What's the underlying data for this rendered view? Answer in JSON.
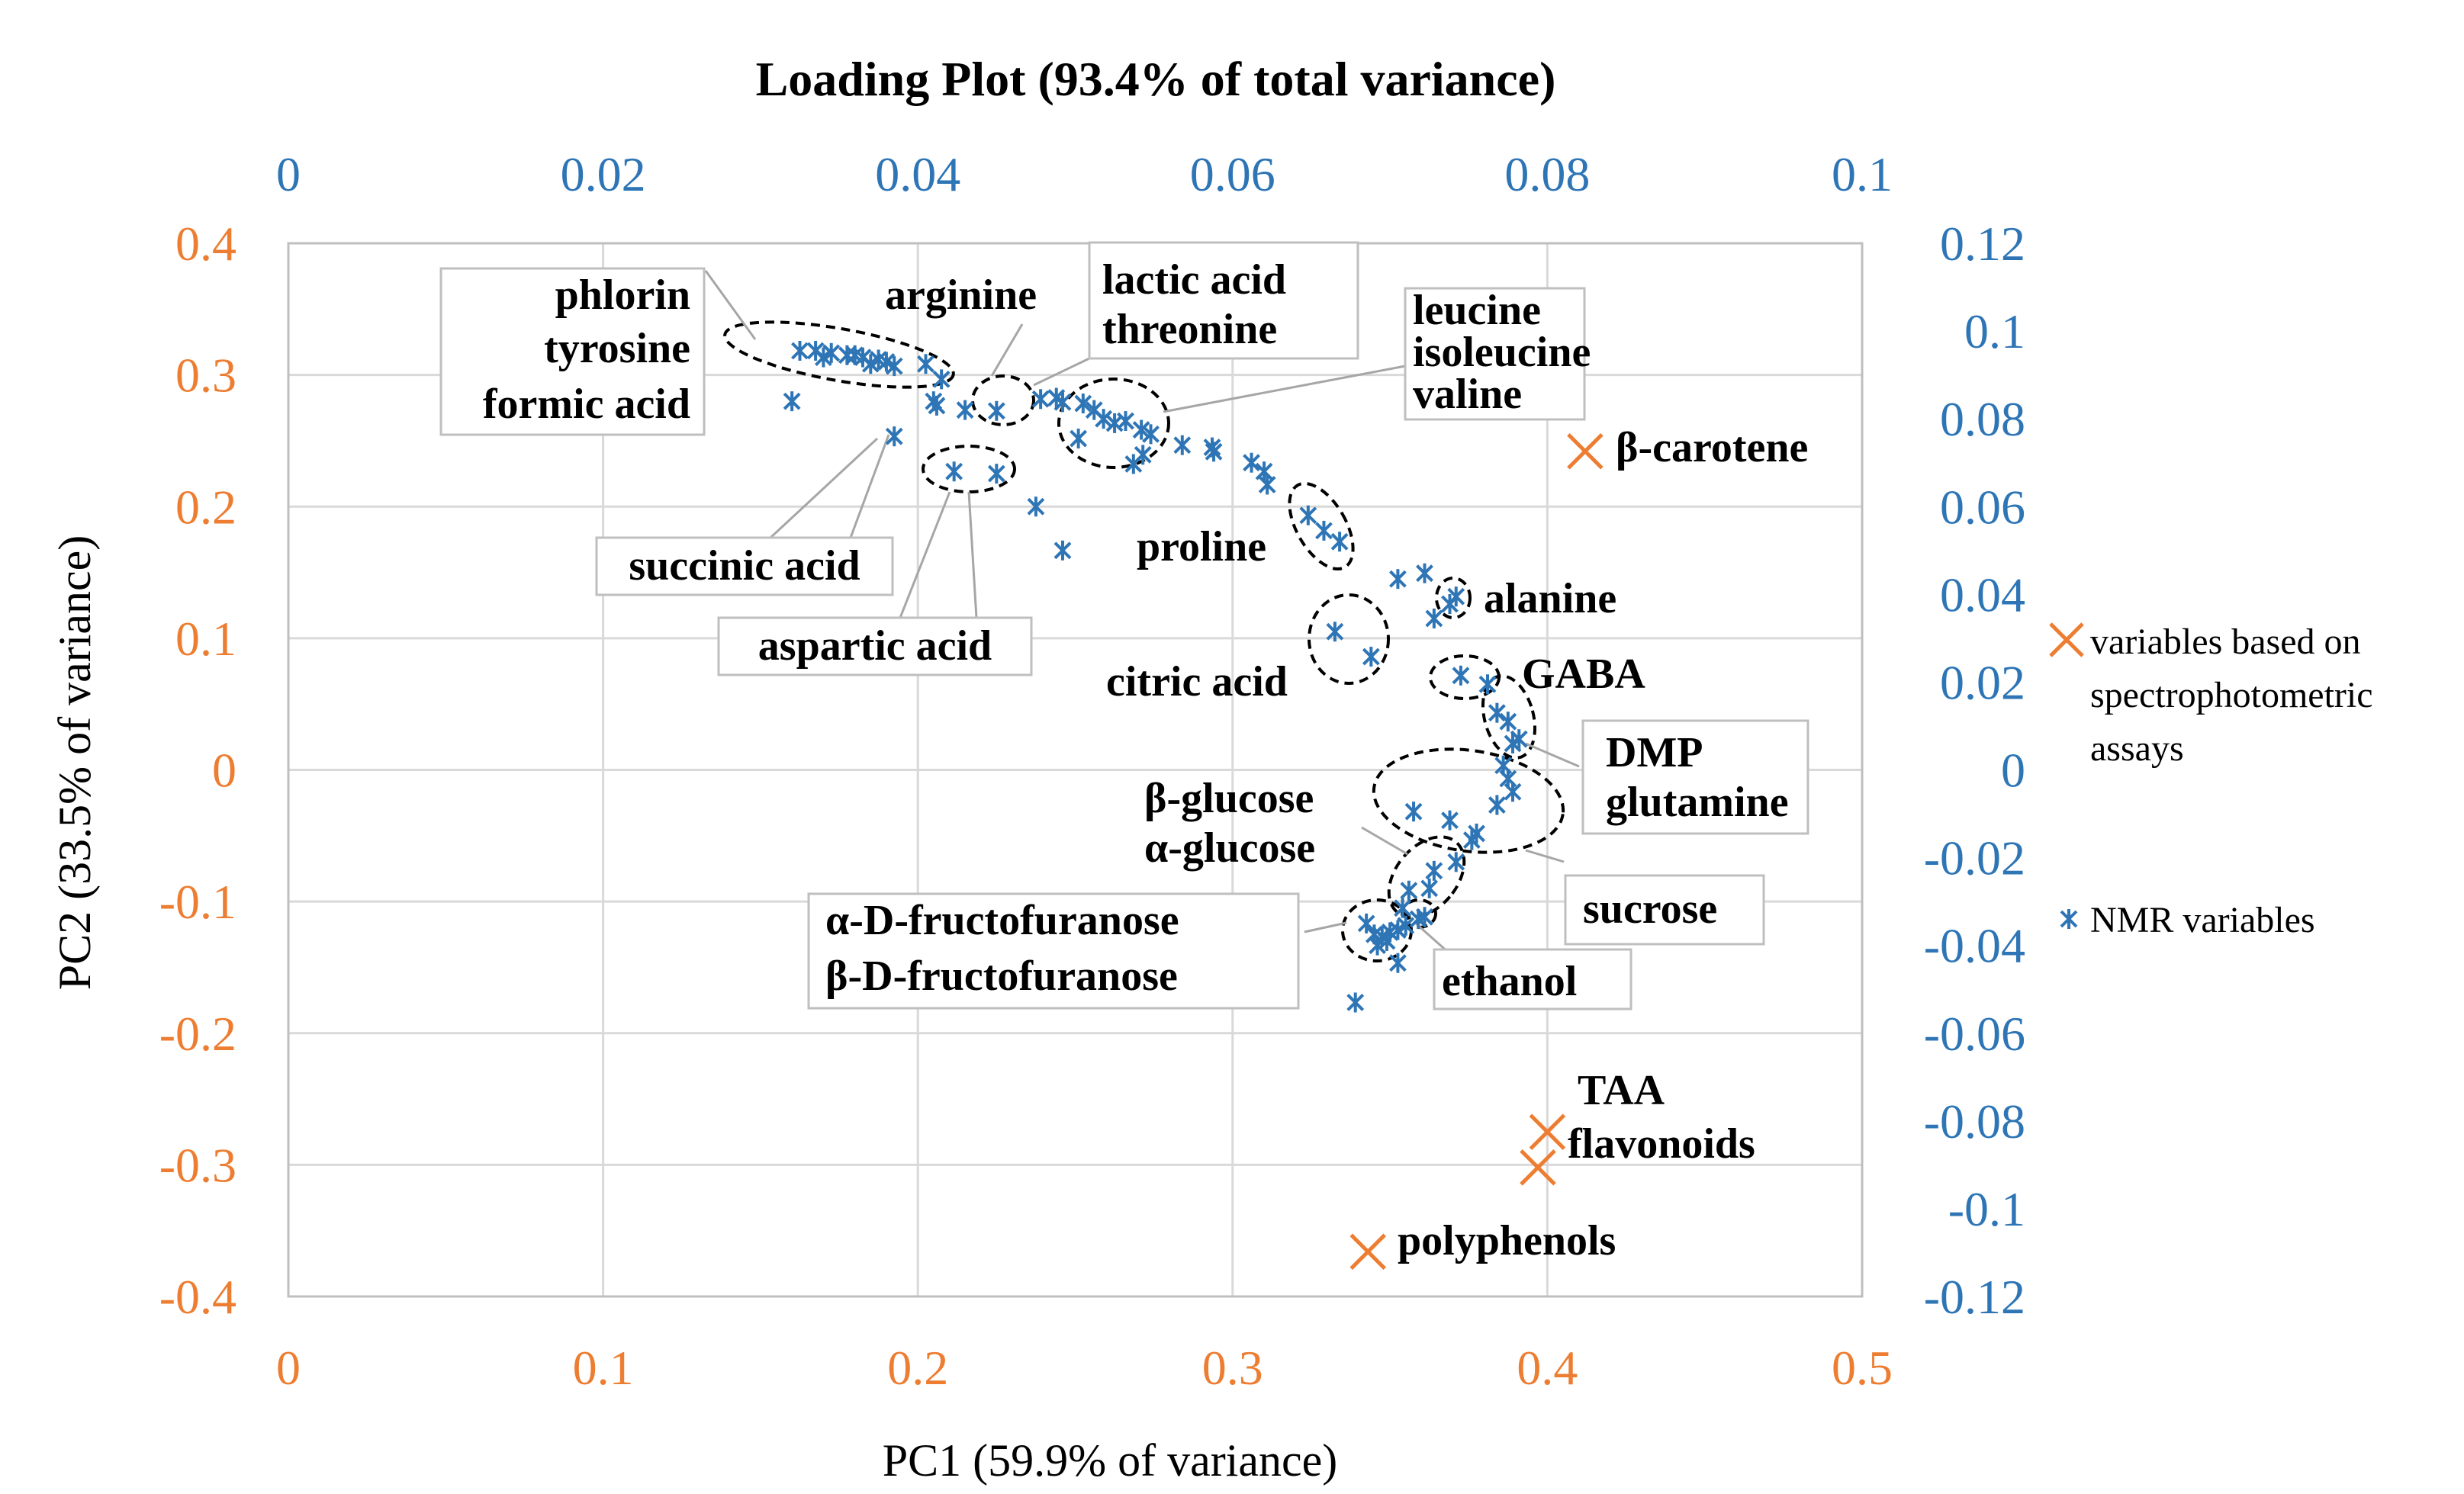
{
  "chart_data": {
    "type": "scatter",
    "title": "Loading Plot (93.4% of total variance)",
    "xlabel": "PC1 (59.9% of variance)",
    "ylabel": "PC2 (33.5% of variance)",
    "x_primary": {
      "range": [
        0,
        0.5
      ],
      "ticks": [
        "0",
        "0.1",
        "0.2",
        "0.3",
        "0.4",
        "0.5"
      ],
      "color": "#ED7D31"
    },
    "y_primary": {
      "range": [
        -0.4,
        0.4
      ],
      "ticks": [
        "-0.4",
        "-0.3",
        "-0.2",
        "-0.1",
        "0",
        "0.1",
        "0.2",
        "0.3",
        "0.4"
      ],
      "color": "#ED7D31"
    },
    "x_secondary": {
      "range": [
        0,
        0.1
      ],
      "ticks": [
        "0",
        "0.02",
        "0.04",
        "0.06",
        "0.08",
        "0.1"
      ],
      "color": "#2E75B6"
    },
    "y_secondary": {
      "range": [
        -0.12,
        0.12
      ],
      "ticks": [
        "-0.12",
        "-0.1",
        "-0.08",
        "-0.06",
        "-0.04",
        "-0.02",
        "0",
        "0.02",
        "0.04",
        "0.06",
        "0.08",
        "0.1",
        "0.12"
      ],
      "color": "#2E75B6"
    },
    "grid": true,
    "legend_position": "right",
    "series": [
      {
        "name": "variables based on spectrophotometric assays",
        "axes": "primary",
        "marker": "x",
        "color": "#ED7D31",
        "points": [
          {
            "label": "β-carotene",
            "x": 0.412,
            "y": 0.242
          },
          {
            "label": "TAA",
            "x": 0.4,
            "y": -0.275
          },
          {
            "label": "flavonoids",
            "x": 0.397,
            "y": -0.302
          },
          {
            "label": "polyphenols",
            "x": 0.343,
            "y": -0.366
          }
        ]
      },
      {
        "name": "NMR variables",
        "axes": "secondary",
        "marker": "asterisk",
        "color": "#2E75B6",
        "points": [
          [
            0.0325,
            0.0955
          ],
          [
            0.0335,
            0.0955
          ],
          [
            0.0345,
            0.095
          ],
          [
            0.0355,
            0.0945
          ],
          [
            0.0365,
            0.094
          ],
          [
            0.0375,
            0.0935
          ],
          [
            0.038,
            0.093
          ],
          [
            0.034,
            0.094
          ],
          [
            0.036,
            0.0945
          ],
          [
            0.037,
            0.0925
          ],
          [
            0.0385,
            0.092
          ],
          [
            0.032,
            0.084
          ],
          [
            0.0405,
            0.0925
          ],
          [
            0.0415,
            0.089
          ],
          [
            0.041,
            0.084
          ],
          [
            0.0412,
            0.083
          ],
          [
            0.043,
            0.082
          ],
          [
            0.0385,
            0.076
          ],
          [
            0.045,
            0.0818
          ],
          [
            0.0478,
            0.0845
          ],
          [
            0.0488,
            0.0848
          ],
          [
            0.0492,
            0.0838
          ],
          [
            0.0505,
            0.0835
          ],
          [
            0.0512,
            0.082
          ],
          [
            0.0518,
            0.08
          ],
          [
            0.0525,
            0.079
          ],
          [
            0.0532,
            0.0795
          ],
          [
            0.0502,
            0.0755
          ],
          [
            0.0542,
            0.0775
          ],
          [
            0.0548,
            0.0765
          ],
          [
            0.0543,
            0.0718
          ],
          [
            0.0537,
            0.0697
          ],
          [
            0.0423,
            0.068
          ],
          [
            0.045,
            0.0675
          ],
          [
            0.0475,
            0.06
          ],
          [
            0.0492,
            0.05
          ],
          [
            0.0568,
            0.074
          ],
          [
            0.0588,
            0.0725
          ],
          [
            0.0587,
            0.0735
          ],
          [
            0.0612,
            0.07
          ],
          [
            0.062,
            0.068
          ],
          [
            0.0622,
            0.065
          ],
          [
            0.0648,
            0.058
          ],
          [
            0.0658,
            0.0545
          ],
          [
            0.0668,
            0.052
          ],
          [
            0.0665,
            0.0315
          ],
          [
            0.0688,
            0.0258
          ],
          [
            0.0705,
            0.0435
          ],
          [
            0.0722,
            0.0448
          ],
          [
            0.0728,
            0.0345
          ],
          [
            0.0742,
            0.0395
          ],
          [
            0.0738,
            0.0378
          ],
          [
            0.0745,
            0.0215
          ],
          [
            0.0762,
            0.0195
          ],
          [
            0.0768,
            0.013
          ],
          [
            0.0775,
            0.011
          ],
          [
            0.0782,
            0.007
          ],
          [
            0.0778,
            0.006
          ],
          [
            0.0772,
            0.001
          ],
          [
            0.0775,
            -0.002
          ],
          [
            0.0778,
            -0.005
          ],
          [
            0.0768,
            -0.008
          ],
          [
            0.0715,
            -0.0095
          ],
          [
            0.0738,
            -0.0115
          ],
          [
            0.0755,
            -0.0145
          ],
          [
            0.0752,
            -0.016
          ],
          [
            0.0742,
            -0.021
          ],
          [
            0.0728,
            -0.023
          ],
          [
            0.0725,
            -0.027
          ],
          [
            0.0712,
            -0.0275
          ],
          [
            0.0708,
            -0.0315
          ],
          [
            0.0718,
            -0.034
          ],
          [
            0.0722,
            -0.0335
          ],
          [
            0.0685,
            -0.035
          ],
          [
            0.069,
            -0.0375
          ],
          [
            0.0695,
            -0.038
          ],
          [
            0.07,
            -0.037
          ],
          [
            0.0705,
            -0.0365
          ],
          [
            0.0698,
            -0.039
          ],
          [
            0.0692,
            -0.04
          ],
          [
            0.071,
            -0.0355
          ],
          [
            0.0705,
            -0.044
          ],
          [
            0.0678,
            -0.053
          ]
        ]
      }
    ],
    "annotations": [
      {
        "text": "phlorin"
      },
      {
        "text": "tyrosine"
      },
      {
        "text": "formic acid"
      },
      {
        "text": "arginine"
      },
      {
        "text": "lactic acid"
      },
      {
        "text": "threonine"
      },
      {
        "text": "leucine"
      },
      {
        "text": "isoleucine"
      },
      {
        "text": "valine"
      },
      {
        "text": "succinic acid"
      },
      {
        "text": "aspartic acid"
      },
      {
        "text": "proline"
      },
      {
        "text": "alanine"
      },
      {
        "text": "citric acid"
      },
      {
        "text": "GABA"
      },
      {
        "text": "DMP"
      },
      {
        "text": "glutamine"
      },
      {
        "text": "β-glucose"
      },
      {
        "text": "α-glucose"
      },
      {
        "text": "sucrose"
      },
      {
        "text": "α-D-fructofuranose"
      },
      {
        "text": "β-D-fructofuranose"
      },
      {
        "text": "ethanol"
      }
    ],
    "legend": [
      {
        "label": "variables based on spectrophotometric assays",
        "lines": [
          "variables based on",
          "spectrophotometric",
          "assays"
        ]
      },
      {
        "label": "NMR variables",
        "lines": [
          "NMR variables"
        ]
      }
    ]
  }
}
